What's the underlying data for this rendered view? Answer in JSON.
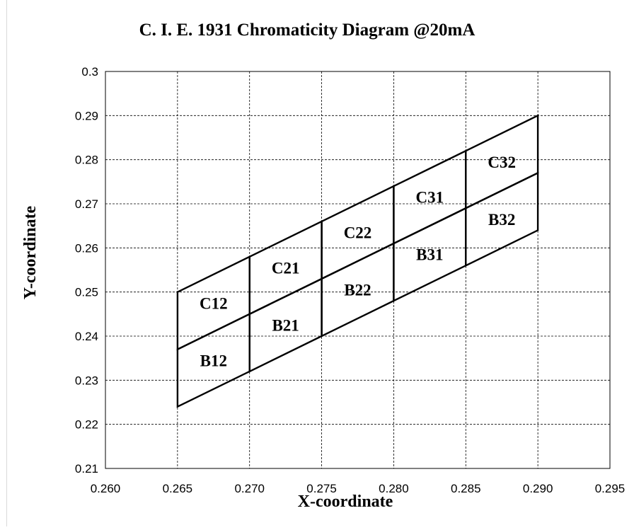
{
  "chart_data": {
    "type": "diagram",
    "title": "C. I. E. 1931 Chromaticity Diagram @20mA",
    "xlabel": "X-coordinate",
    "ylabel": "Y-coordinate",
    "xlim": [
      0.26,
      0.295
    ],
    "ylim": [
      0.21,
      0.3
    ],
    "x_ticks": [
      "0.260",
      "0.265",
      "0.270",
      "0.275",
      "0.280",
      "0.285",
      "0.290",
      "0.295"
    ],
    "y_ticks": [
      "0.3",
      "0.29",
      "0.28",
      "0.27",
      "0.26",
      "0.25",
      "0.24",
      "0.23",
      "0.22",
      "0.21"
    ],
    "grid": true,
    "grid_style": "dashed",
    "bins": [
      {
        "name": "C12",
        "corners": [
          [
            0.265,
            0.25
          ],
          [
            0.27,
            0.258
          ],
          [
            0.27,
            0.245
          ],
          [
            0.265,
            0.237
          ]
        ]
      },
      {
        "name": "C21",
        "corners": [
          [
            0.27,
            0.258
          ],
          [
            0.275,
            0.266
          ],
          [
            0.275,
            0.253
          ],
          [
            0.27,
            0.245
          ]
        ]
      },
      {
        "name": "C22",
        "corners": [
          [
            0.275,
            0.266
          ],
          [
            0.28,
            0.274
          ],
          [
            0.28,
            0.261
          ],
          [
            0.275,
            0.253
          ]
        ]
      },
      {
        "name": "C31",
        "corners": [
          [
            0.28,
            0.274
          ],
          [
            0.285,
            0.282
          ],
          [
            0.285,
            0.269
          ],
          [
            0.28,
            0.261
          ]
        ]
      },
      {
        "name": "C32",
        "corners": [
          [
            0.285,
            0.282
          ],
          [
            0.29,
            0.29
          ],
          [
            0.29,
            0.277
          ],
          [
            0.285,
            0.269
          ]
        ]
      },
      {
        "name": "B12",
        "corners": [
          [
            0.265,
            0.237
          ],
          [
            0.27,
            0.245
          ],
          [
            0.27,
            0.232
          ],
          [
            0.265,
            0.224
          ]
        ]
      },
      {
        "name": "B21",
        "corners": [
          [
            0.27,
            0.245
          ],
          [
            0.275,
            0.253
          ],
          [
            0.275,
            0.24
          ],
          [
            0.27,
            0.232
          ]
        ]
      },
      {
        "name": "B22",
        "corners": [
          [
            0.275,
            0.253
          ],
          [
            0.28,
            0.261
          ],
          [
            0.28,
            0.248
          ],
          [
            0.275,
            0.24
          ]
        ]
      },
      {
        "name": "B31",
        "corners": [
          [
            0.28,
            0.261
          ],
          [
            0.285,
            0.269
          ],
          [
            0.285,
            0.256
          ],
          [
            0.28,
            0.248
          ]
        ]
      },
      {
        "name": "B32",
        "corners": [
          [
            0.285,
            0.269
          ],
          [
            0.29,
            0.277
          ],
          [
            0.29,
            0.264
          ],
          [
            0.285,
            0.256
          ]
        ]
      }
    ]
  }
}
